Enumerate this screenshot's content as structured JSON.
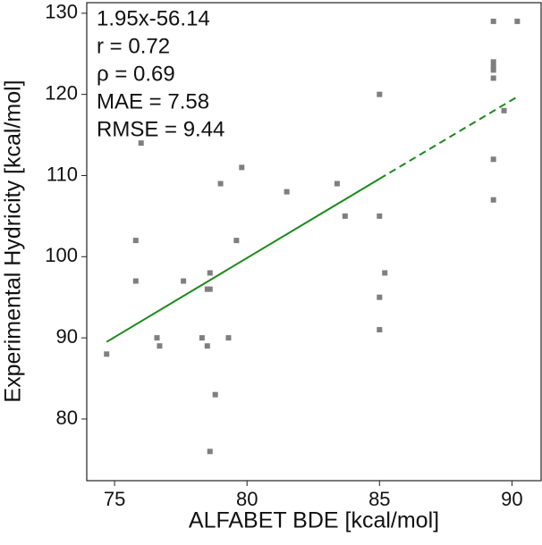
{
  "chart_data": {
    "type": "scatter",
    "xlabel": "ALFABET BDE [kcal/mol]",
    "ylabel": "Experimental Hydricity [kcal/mol]",
    "annotations": [
      "1.95x-56.14",
      "r = 0.72",
      "ρ = 0.69",
      "MAE = 7.58",
      "RMSE = 9.44"
    ],
    "xlim": [
      73.95,
      91.1
    ],
    "ylim": [
      72.4,
      131.3
    ],
    "xticks": [
      75,
      80,
      85,
      90
    ],
    "yticks": [
      80,
      90,
      100,
      110,
      120,
      130
    ],
    "series": [
      {
        "color": "#7f7f7f",
        "x": [
          74.7,
          75.8,
          75.8,
          76.0,
          76.6,
          76.7,
          77.6,
          78.3,
          78.5,
          78.5,
          78.6,
          78.6,
          78.8,
          78.6,
          79.0,
          79.3,
          79.6,
          79.8,
          81.5,
          83.4,
          83.7,
          85.0,
          85.0,
          85.0,
          85.0,
          85.2,
          89.3,
          90.2,
          89.3,
          89.3,
          89.3,
          89.3,
          89.3,
          89.3,
          89.7
        ],
        "values": [
          88,
          102,
          97,
          114,
          90,
          89,
          97,
          90,
          89,
          96,
          96,
          98,
          83,
          76,
          109,
          90,
          102,
          111,
          108,
          109,
          105,
          120,
          105,
          95,
          91,
          98,
          129,
          129,
          124,
          123.4,
          123,
          122,
          112,
          107,
          118
        ]
      }
    ],
    "fit": {
      "color": "#1a8a1a",
      "x": [
        74.7,
        85.0,
        90.2
      ],
      "values": [
        89.5,
        109.6,
        119.7
      ],
      "dashed_from_index": 1
    }
  }
}
